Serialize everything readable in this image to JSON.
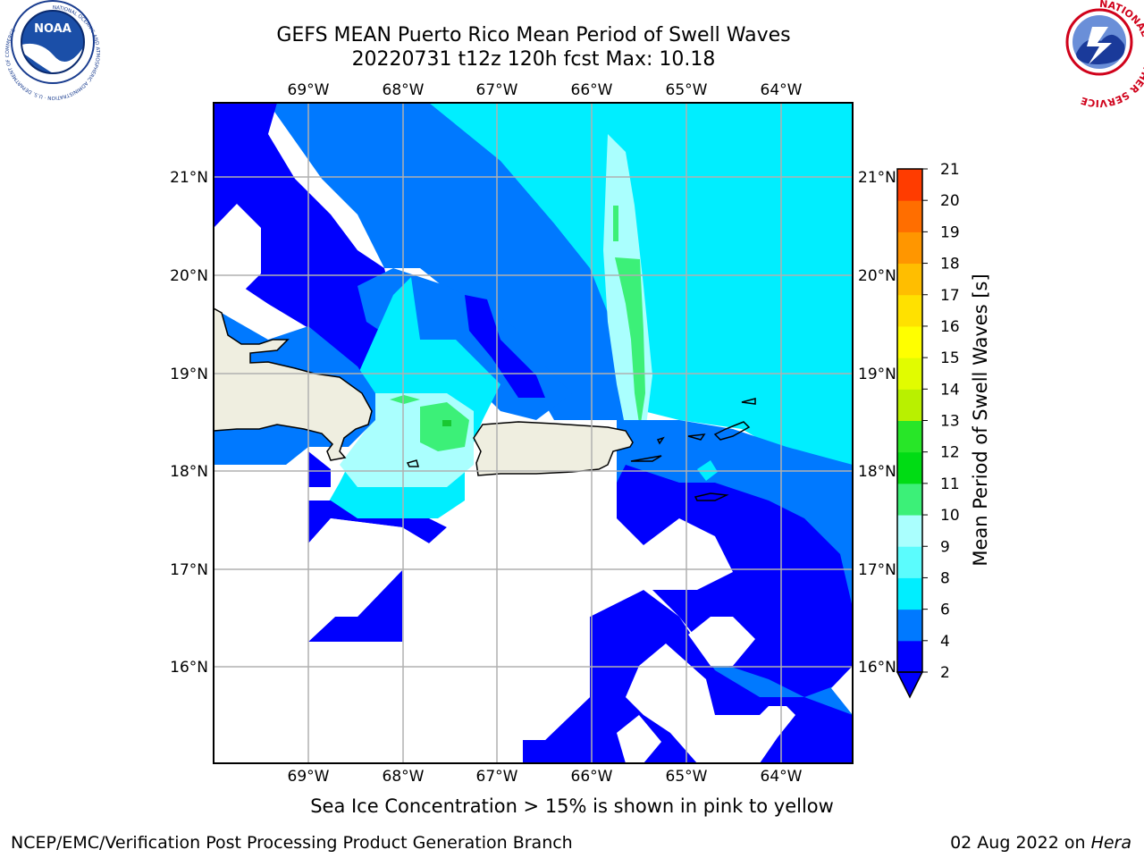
{
  "header": {
    "title_line1": "GEFS MEAN Puerto Rico Mean Period of Swell Waves",
    "title_line2": "20220731 t12z 120h fcst   Max: 10.18"
  },
  "logos": {
    "left": {
      "name": "noaa-logo",
      "text": "NOAA",
      "ring_text": "NATIONAL OCEANIC AND ATMOSPHERIC ADMINISTRATION · U.S. DEPARTMENT OF COMMERCE"
    },
    "right": {
      "name": "nws-logo",
      "ring_text": "NATIONAL WEATHER SERVICE"
    }
  },
  "map": {
    "lon_labels": [
      "69°W",
      "68°W",
      "67°W",
      "66°W",
      "65°W",
      "64°W"
    ],
    "lat_labels": [
      "21°N",
      "20°N",
      "19°N",
      "18°N",
      "17°N",
      "16°N"
    ],
    "colors": {
      "land": "#efeee0",
      "white": "#ffffff",
      "c2_4": "#0000fe",
      "c4_6": "#0079ff",
      "c6_8": "#00eeff",
      "c8_9": "#aafffe",
      "c9_10": "#3cf078",
      "c10_11": "#19c832"
    }
  },
  "colorbar": {
    "label": "Mean Period of Swell Waves [s]",
    "ticks": [
      "2",
      "4",
      "6",
      "8",
      "9",
      "10",
      "11",
      "12",
      "13",
      "14",
      "15",
      "16",
      "17",
      "18",
      "19",
      "20",
      "21"
    ],
    "colors": [
      "#0000fe",
      "#0079ff",
      "#00eeff",
      "#5bfcfd",
      "#aafffe",
      "#3cf078",
      "#00dc14",
      "#28e628",
      "#b9f000",
      "#e1fc00",
      "#ffff00",
      "#ffe100",
      "#ffbe00",
      "#ff9600",
      "#ff6e00",
      "#ff3c00",
      "#ff0000"
    ],
    "under_color": "#0000fe"
  },
  "footer": {
    "note": "Sea Ice Concentration > 15% is shown in pink to yellow",
    "left": "NCEP/EMC/Verification Post Processing Product Generation Branch",
    "right_date": "02 Aug 2022 on ",
    "right_machine": "Hera"
  }
}
